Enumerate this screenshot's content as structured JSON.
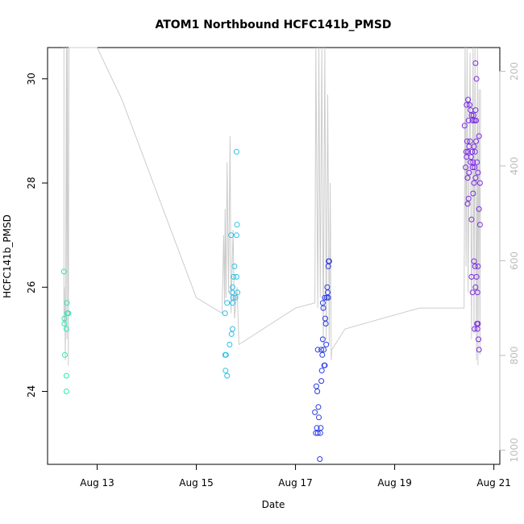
{
  "chart_data": {
    "type": "scatter",
    "title": "ATOM1 Northbound HCFC141b_PMSD",
    "xlabel": "Date",
    "ylabel": "HCFC141b_PMSD",
    "x_unit": "days since Aug 12 00:00",
    "xlim": [
      0.0,
      9.12
    ],
    "ylim": [
      22.6,
      30.6
    ],
    "x_ticks": [
      {
        "x": 1,
        "label": "Aug 13"
      },
      {
        "x": 3,
        "label": "Aug 15"
      },
      {
        "x": 5,
        "label": "Aug 17"
      },
      {
        "x": 7,
        "label": "Aug 19"
      },
      {
        "x": 9,
        "label": "Aug 21"
      }
    ],
    "y_ticks": [
      24,
      26,
      28,
      30
    ],
    "right_axis": {
      "range_top": 150,
      "range_bottom": 1030,
      "ticks": [
        200,
        400,
        600,
        800,
        1000
      ],
      "color": "#bdbdbd"
    },
    "grid": false,
    "series": [
      {
        "color": "#33e6b3",
        "points": [
          [
            0.33,
            26.3
          ],
          [
            0.34,
            25.4
          ],
          [
            0.34,
            25.3
          ],
          [
            0.35,
            24.7
          ],
          [
            0.38,
            25.2
          ],
          [
            0.39,
            25.7
          ],
          [
            0.4,
            25.5
          ],
          [
            0.42,
            25.5
          ],
          [
            0.38,
            24.3
          ],
          [
            0.38,
            24.0
          ]
        ]
      },
      {
        "color": "#2fc0e6",
        "points": [
          [
            3.58,
            25.5
          ],
          [
            3.62,
            25.7
          ],
          [
            3.58,
            24.7
          ],
          [
            3.6,
            24.7
          ],
          [
            3.59,
            24.4
          ],
          [
            3.62,
            24.3
          ],
          [
            3.67,
            24.9
          ],
          [
            3.71,
            25.1
          ],
          [
            3.73,
            25.2
          ],
          [
            3.74,
            25.8
          ],
          [
            3.73,
            25.7
          ],
          [
            3.72,
            25.9
          ],
          [
            3.73,
            26.0
          ],
          [
            3.75,
            26.2
          ],
          [
            3.77,
            26.4
          ],
          [
            3.79,
            25.8
          ],
          [
            3.7,
            27.0
          ],
          [
            3.81,
            27.0
          ],
          [
            3.81,
            26.2
          ],
          [
            3.83,
            25.9
          ],
          [
            3.82,
            27.2
          ],
          [
            3.81,
            28.6
          ]
        ]
      },
      {
        "color": "#2b3be3",
        "points": [
          [
            5.39,
            23.6
          ],
          [
            5.42,
            24.1
          ],
          [
            5.43,
            23.3
          ],
          [
            5.41,
            23.2
          ],
          [
            5.45,
            23.2
          ],
          [
            5.46,
            23.7
          ],
          [
            5.47,
            23.5
          ],
          [
            5.45,
            24.8
          ],
          [
            5.44,
            24.0
          ],
          [
            5.49,
            22.7
          ],
          [
            5.5,
            23.2
          ],
          [
            5.51,
            23.3
          ],
          [
            5.52,
            24.2
          ],
          [
            5.53,
            24.4
          ],
          [
            5.54,
            24.7
          ],
          [
            5.52,
            24.8
          ],
          [
            5.56,
            25.6
          ],
          [
            5.55,
            25.0
          ],
          [
            5.58,
            24.5
          ],
          [
            5.59,
            24.5
          ],
          [
            5.61,
            25.3
          ],
          [
            5.62,
            24.9
          ],
          [
            5.63,
            25.8
          ],
          [
            5.64,
            26.0
          ],
          [
            5.66,
            26.4
          ],
          [
            5.67,
            26.5
          ],
          [
            5.68,
            26.5
          ],
          [
            5.65,
            25.9
          ],
          [
            5.66,
            25.8
          ],
          [
            5.6,
            25.4
          ],
          [
            5.59,
            25.8
          ],
          [
            5.55,
            25.7
          ],
          [
            5.57,
            24.8
          ]
        ]
      },
      {
        "color": "#7b2be6",
        "points": [
          [
            8.41,
            29.1
          ],
          [
            8.45,
            29.5
          ],
          [
            8.48,
            29.6
          ],
          [
            8.51,
            29.5
          ],
          [
            8.53,
            29.4
          ],
          [
            8.55,
            29.3
          ],
          [
            8.57,
            29.2
          ],
          [
            8.59,
            29.3
          ],
          [
            8.61,
            29.2
          ],
          [
            8.63,
            29.4
          ],
          [
            8.64,
            29.2
          ],
          [
            8.49,
            29.2
          ],
          [
            8.44,
            28.6
          ],
          [
            8.46,
            28.8
          ],
          [
            8.48,
            28.6
          ],
          [
            8.5,
            28.7
          ],
          [
            8.52,
            28.8
          ],
          [
            8.54,
            28.5
          ],
          [
            8.56,
            28.6
          ],
          [
            8.58,
            28.4
          ],
          [
            8.6,
            28.7
          ],
          [
            8.62,
            28.6
          ],
          [
            8.64,
            28.8
          ],
          [
            8.66,
            28.4
          ],
          [
            8.68,
            28.2
          ],
          [
            8.7,
            28.9
          ],
          [
            8.72,
            28.0
          ],
          [
            8.43,
            28.3
          ],
          [
            8.47,
            28.1
          ],
          [
            8.5,
            28.2
          ],
          [
            8.53,
            28.4
          ],
          [
            8.57,
            28.3
          ],
          [
            8.61,
            28.3
          ],
          [
            8.63,
            28.1
          ],
          [
            8.49,
            27.7
          ],
          [
            8.47,
            27.6
          ],
          [
            8.55,
            27.3
          ],
          [
            8.7,
            27.5
          ],
          [
            8.72,
            27.2
          ],
          [
            8.45,
            28.5
          ],
          [
            8.58,
            27.8
          ],
          [
            8.6,
            28.0
          ],
          [
            8.63,
            30.3
          ],
          [
            8.65,
            30.0
          ],
          [
            8.55,
            26.2
          ],
          [
            8.57,
            25.9
          ],
          [
            8.6,
            26.5
          ],
          [
            8.62,
            26.4
          ],
          [
            8.65,
            26.2
          ],
          [
            8.67,
            25.9
          ],
          [
            8.68,
            26.4
          ],
          [
            8.63,
            26.0
          ],
          [
            8.66,
            25.3
          ],
          [
            8.67,
            25.2
          ],
          [
            8.69,
            25.0
          ],
          [
            8.7,
            24.8
          ],
          [
            8.61,
            25.2
          ],
          [
            8.68,
            25.3
          ]
        ]
      }
    ],
    "background_trace": {
      "color": "#cccccc",
      "points": [
        [
          0.33,
          30.6
        ],
        [
          0.33,
          25.3
        ],
        [
          0.34,
          26.0
        ],
        [
          0.36,
          24.6
        ],
        [
          0.38,
          30.6
        ],
        [
          0.39,
          25.0
        ],
        [
          0.4,
          30.6
        ],
        [
          0.42,
          24.5
        ],
        [
          0.43,
          30.6
        ],
        [
          0.45,
          30.6
        ],
        [
          1.0,
          30.6
        ],
        [
          1.5,
          29.6
        ],
        [
          3.0,
          25.8
        ],
        [
          3.52,
          25.5
        ],
        [
          3.55,
          27.0
        ],
        [
          3.57,
          25.7
        ],
        [
          3.58,
          27.5
        ],
        [
          3.6,
          25.8
        ],
        [
          3.62,
          28.4
        ],
        [
          3.65,
          25.9
        ],
        [
          3.68,
          28.9
        ],
        [
          3.7,
          25.5
        ],
        [
          3.74,
          27.1
        ],
        [
          3.77,
          25.4
        ],
        [
          3.82,
          26.0
        ],
        [
          3.85,
          25.2
        ],
        [
          3.86,
          24.9
        ],
        [
          5.0,
          25.6
        ],
        [
          5.39,
          25.7
        ],
        [
          5.41,
          30.6
        ],
        [
          5.45,
          25.6
        ],
        [
          5.47,
          30.6
        ],
        [
          5.5,
          25.8
        ],
        [
          5.53,
          30.6
        ],
        [
          5.56,
          24.9
        ],
        [
          5.59,
          30.6
        ],
        [
          5.62,
          25.0
        ],
        [
          5.65,
          29.7
        ],
        [
          5.68,
          24.9
        ],
        [
          5.7,
          28.0
        ],
        [
          5.72,
          24.6
        ],
        [
          5.73,
          24.8
        ],
        [
          6.0,
          25.2
        ],
        [
          7.5,
          25.6
        ],
        [
          8.4,
          25.6
        ],
        [
          8.42,
          30.6
        ],
        [
          8.44,
          26.4
        ],
        [
          8.46,
          30.6
        ],
        [
          8.48,
          25.9
        ],
        [
          8.52,
          30.5
        ],
        [
          8.55,
          25.0
        ],
        [
          8.58,
          30.6
        ],
        [
          8.6,
          25.1
        ],
        [
          8.62,
          30.6
        ],
        [
          8.65,
          24.6
        ],
        [
          8.67,
          30.6
        ],
        [
          8.68,
          24.5
        ],
        [
          8.7,
          29.8
        ],
        [
          8.72,
          24.7
        ],
        [
          8.73,
          29.8
        ]
      ]
    }
  }
}
